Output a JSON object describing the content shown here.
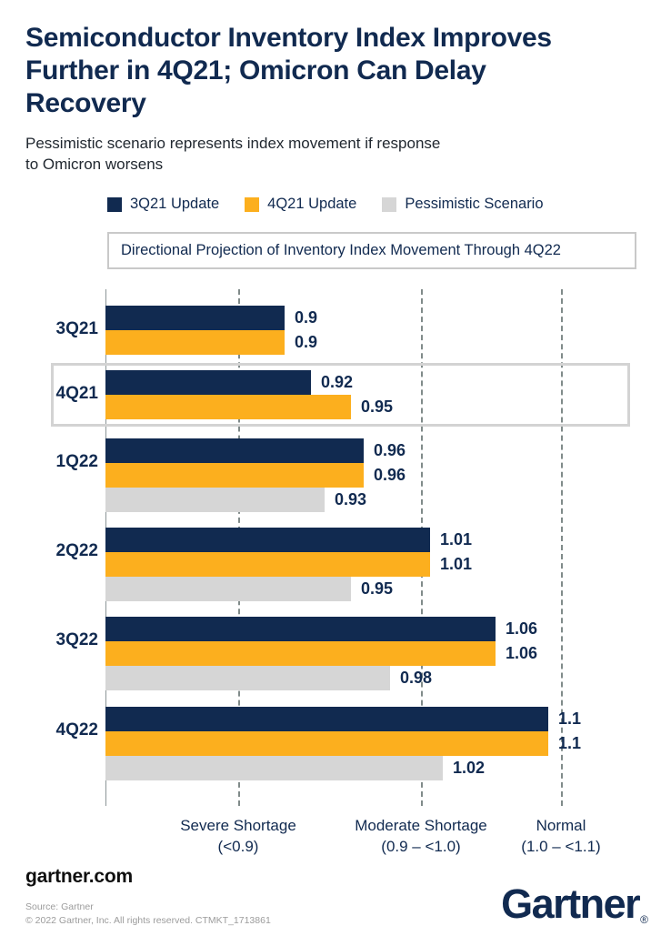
{
  "header": {
    "title": "Semiconductor Inventory Index Improves Further in 4Q21; Omicron Can Delay Recovery",
    "subtitle": "Pessimistic scenario represents index movement if response to Omicron worsens"
  },
  "legend": [
    {
      "label": "3Q21 Update",
      "color": "#112A50"
    },
    {
      "label": "4Q21 Update",
      "color": "#FCAF1E"
    },
    {
      "label": "Pessimistic Scenario",
      "color": "#D6D6D6"
    }
  ],
  "callout": "Directional Projection of Inventory Index Movement Through 4Q22",
  "chart_data": {
    "type": "bar",
    "orientation": "horizontal",
    "title": "Directional Projection of Inventory Index Movement Through 4Q22",
    "categories": [
      "3Q21",
      "4Q21",
      "1Q22",
      "2Q22",
      "3Q22",
      "4Q22"
    ],
    "series": [
      {
        "name": "3Q21 Update",
        "color": "#112A50",
        "values": [
          0.9,
          0.92,
          0.96,
          1.01,
          1.06,
          1.1
        ]
      },
      {
        "name": "4Q21 Update",
        "color": "#FCAF1E",
        "values": [
          0.9,
          0.95,
          0.96,
          1.01,
          1.06,
          1.1
        ]
      },
      {
        "name": "Pessimistic Scenario",
        "color": "#D6D6D6",
        "values": [
          null,
          null,
          0.93,
          0.95,
          0.98,
          1.02
        ]
      }
    ],
    "value_labels": true,
    "highlighted_category": "4Q21",
    "x_axis": {
      "gridlines": "dashed",
      "xlim": [
        0.765,
        1.19
      ],
      "zones": [
        {
          "label": "Severe Shortage",
          "range": "(<0.9)",
          "boundary_value": 0.9
        },
        {
          "label": "Moderate Shortage",
          "range": "(0.9 – <1.0)",
          "boundary_value": 1.0
        },
        {
          "label": "Normal",
          "range": "(1.0 – <1.1)",
          "boundary_value": 1.1
        }
      ]
    }
  },
  "footer": {
    "website": "gartner.com",
    "source": "Source: Gartner",
    "copyright": "© 2022 Gartner, Inc. All rights reserved. CTMKT_1713861",
    "logo_text": "Gartner",
    "logo_mark": "®"
  }
}
